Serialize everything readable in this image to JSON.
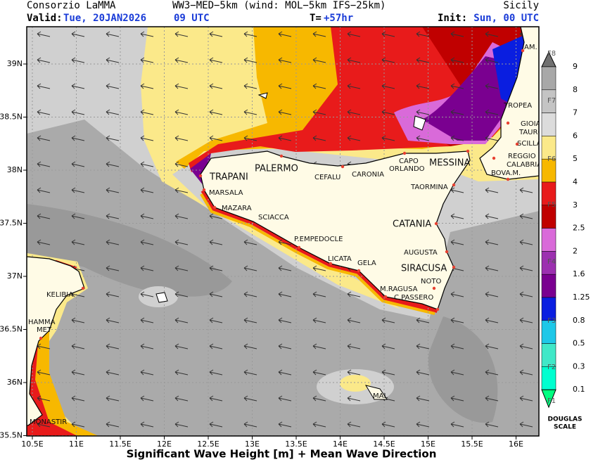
{
  "header": {
    "org": "Consorzio LaMMA",
    "model": "WW3−MED−5km (wind: MOL−5km IFS−25km)",
    "region": "Sicily",
    "valid_label": "Valid:",
    "valid_date": "Tue, 20JAN2026",
    "valid_time": "09 UTC",
    "t_label": "T=",
    "t_value": "+57hr",
    "init_label": "Init:",
    "init_value": "Sun, 00 UTC"
  },
  "map": {
    "lon_ticks": [
      "10.5E",
      "11E",
      "11.5E",
      "12E",
      "12.5E",
      "13E",
      "13.5E",
      "14E",
      "14.5E",
      "15E",
      "15.5E",
      "16E"
    ],
    "lat_ticks": [
      "39N",
      "38.5N",
      "38N",
      "37.5N",
      "37N",
      "36.5N",
      "36N",
      "35.5N"
    ],
    "places": [
      "AM.",
      "TROPEA",
      "GIOIA",
      "TAURO",
      "SCILLA",
      "REGGIO",
      "CALABRIA",
      "BOVA.M.",
      "MESSINA",
      "CAPO",
      "ORLANDO",
      "CARONIA",
      "CEFALU",
      "PALERMO",
      "TRAPANI",
      "MARSALA",
      "MAZARA",
      "SCIACCA",
      "P.EMPEDOCLE",
      "LICATA",
      "GELA",
      "CATANIA",
      "AUGUSTA",
      "SIRACUSA",
      "NOTO",
      "M.RAGUSA",
      "C.PASSERO",
      "TAORMINA",
      "KELIBIA",
      "HAMMA",
      "MET",
      "MONASTIR",
      "MAL"
    ]
  },
  "legend": {
    "values": [
      "9",
      "8",
      "7",
      "6",
      "5",
      "4",
      "3",
      "2.5",
      "2",
      "1.6",
      "1.25",
      "0.8",
      "0.5",
      "0.3",
      "0.1"
    ],
    "douglas": [
      "F8",
      "F7",
      "F6",
      "F5",
      "F4",
      "F3",
      "F2",
      "F1"
    ],
    "scale": [
      "DOUGLAS",
      "SCALE"
    ]
  },
  "footer": "Significant Wave Height [m] + Mean Wave Direction"
}
